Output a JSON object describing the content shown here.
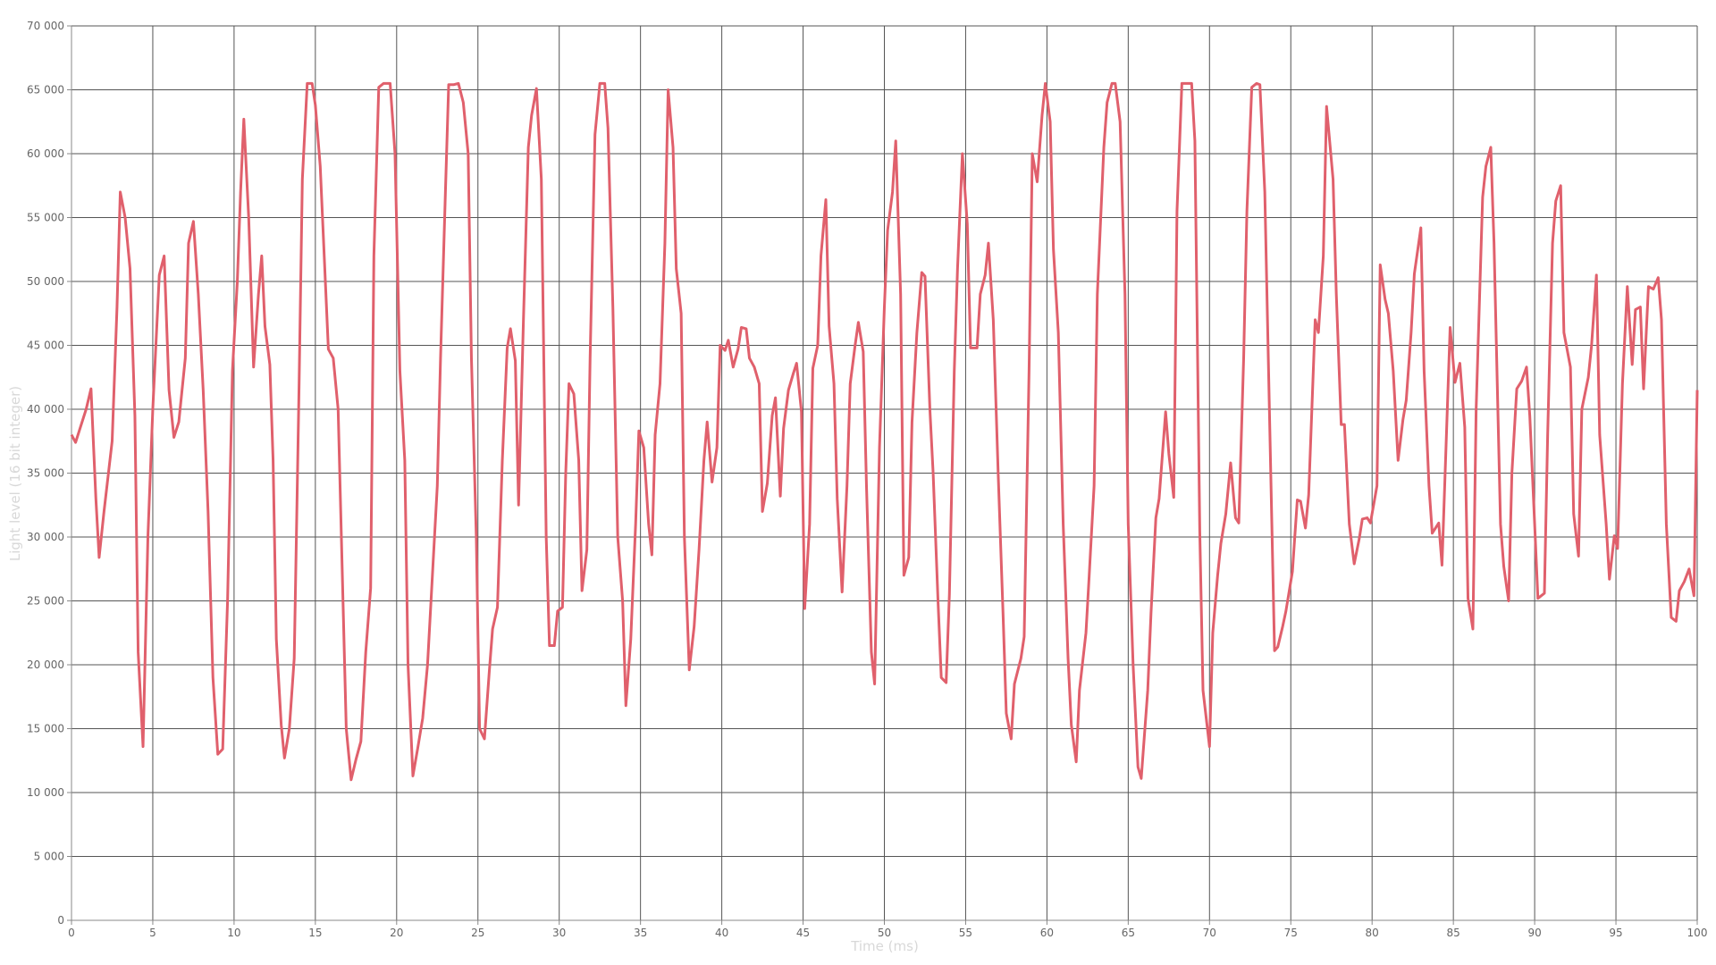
{
  "chart_data": {
    "type": "line",
    "x_label": "Time (ms)",
    "y_label": "Light level (16 bit integer)",
    "color": "#e0606c",
    "grid": true,
    "xlim": [
      0,
      100
    ],
    "xticks": [
      0,
      5,
      10,
      15,
      20,
      25,
      30,
      35,
      40,
      45,
      50,
      55,
      60,
      65,
      70,
      75,
      80,
      85,
      90,
      95,
      100
    ],
    "ylim": [
      0,
      70000
    ],
    "yticks": [
      0,
      {
        "value": 5000,
        "label": "5 000"
      },
      {
        "value": 10000,
        "label": "10 000"
      },
      {
        "value": 15000,
        "label": "15 000"
      },
      {
        "value": 20000,
        "label": "20 000"
      },
      {
        "value": 25000,
        "label": "25 000"
      },
      {
        "value": 30000,
        "label": "30 000"
      },
      {
        "value": 35000,
        "label": "35 000"
      },
      {
        "value": 40000,
        "label": "40 000"
      },
      {
        "value": 45000,
        "label": "45 000"
      },
      {
        "value": 50000,
        "label": "50 000"
      },
      {
        "value": 55000,
        "label": "55 000"
      },
      {
        "value": 60000,
        "label": "60 000"
      },
      {
        "value": 65000,
        "label": "65 000"
      },
      {
        "value": 70000,
        "label": "70 000"
      }
    ],
    "x": [
      0,
      0.25,
      0.9,
      1.2,
      1.5,
      1.7,
      2,
      2.5,
      2.8,
      3,
      3.3,
      3.6,
      3.9,
      4.1,
      4.4,
      4.7,
      5,
      5.4,
      5.7,
      6,
      6.3,
      6.6,
      7,
      7.2,
      7.5,
      7.8,
      8.1,
      8.4,
      8.7,
      9,
      9.3,
      9.6,
      9.9,
      10.2,
      10.4,
      10.6,
      10.9,
      11.2,
      11.5,
      11.7,
      11.9,
      12.2,
      12.4,
      12.6,
      12.9,
      13.1,
      13.4,
      13.7,
      14,
      14.2,
      14.5,
      14.8,
      15,
      15.3,
      15.8,
      16.1,
      16.4,
      16.7,
      16.9,
      17.2,
      17.5,
      17.8,
      18.1,
      18.4,
      18.6,
      18.9,
      19.2,
      19.6,
      19.9,
      20.2,
      20.5,
      20.7,
      21,
      21.3,
      21.6,
      21.9,
      22.2,
      22.5,
      22.7,
      23,
      23.2,
      23.5,
      23.8,
      24.1,
      24.4,
      24.6,
      24.9,
      25.1,
      25.4,
      25.7,
      25.9,
      26.2,
      26.5,
      26.8,
      27,
      27.3,
      27.5,
      27.8,
      28.1,
      28.3,
      28.6,
      28.9,
      29.2,
      29.4,
      29.7,
      29.9,
      30.2,
      30.4,
      30.6,
      30.9,
      31.2,
      31.4,
      31.7,
      31.9,
      32.2,
      32.5,
      32.8,
      33,
      33.3,
      33.6,
      33.9,
      34.1,
      34.4,
      34.7,
      34.9,
      35.2,
      35.5,
      35.7,
      35.9,
      36.2,
      36.5,
      36.7,
      37,
      37.2,
      37.5,
      37.7,
      38,
      38.3,
      38.6,
      38.9,
      39.1,
      39.4,
      39.7,
      39.9,
      40.2,
      40.4,
      40.7,
      41,
      41.2,
      41.5,
      41.7,
      42,
      42.3,
      42.5,
      42.8,
      43.1,
      43.3,
      43.6,
      43.8,
      44.1,
      44.4,
      44.6,
      44.9,
      45.1,
      45.4,
      45.6,
      45.9,
      46.1,
      46.4,
      46.6,
      46.9,
      47.1,
      47.4,
      47.7,
      47.9,
      48.2,
      48.4,
      48.7,
      48.9,
      49.2,
      49.4,
      49.7,
      50,
      50.2,
      50.5,
      50.7,
      51,
      51.2,
      51.5,
      51.7,
      52,
      52.3,
      52.5,
      52.8,
      53,
      53.3,
      53.5,
      53.8,
      54,
      54.3,
      54.5,
      54.8,
      55.1,
      55.3,
      55.7,
      55.9,
      56.2,
      56.4,
      56.7,
      57,
      57.3,
      57.5,
      57.8,
      58,
      58.4,
      58.6,
      58.9,
      59.1,
      59.4,
      59.7,
      59.9,
      60.2,
      60.4,
      60.7,
      61,
      61.3,
      61.5,
      61.8,
      62,
      62.4,
      62.6,
      62.9,
      63.1,
      63.5,
      63.7,
      64,
      64.2,
      64.5,
      64.8,
      65,
      65.3,
      65.6,
      65.8,
      66.2,
      66.4,
      66.7,
      66.9,
      67.3,
      67.5,
      67.8,
      68,
      68.3,
      68.6,
      68.9,
      69.1,
      69.4,
      69.6,
      70,
      70.2,
      70.5,
      70.7,
      71,
      71.3,
      71.6,
      71.8,
      72.1,
      72.3,
      72.6,
      72.9,
      73.1,
      73.4,
      73.6,
      74,
      74.2,
      74.5,
      74.7,
      75.1,
      75.4,
      75.6,
      75.9,
      76.1,
      76.5,
      76.7,
      77,
      77.2,
      77.6,
      77.8,
      78.1,
      78.3,
      78.6,
      78.9,
      79.2,
      79.4,
      79.7,
      79.9,
      80.3,
      80.5,
      80.8,
      81,
      81.3,
      81.6,
      81.9,
      82.1,
      82.4,
      82.6,
      83,
      83.2,
      83.5,
      83.7,
      84.1,
      84.3,
      84.6,
      84.8,
      85.1,
      85.4,
      85.7,
      85.9,
      86.2,
      86.4,
      86.8,
      87,
      87.3,
      87.5,
      87.9,
      88.1,
      88.4,
      88.6,
      88.9,
      89.2,
      89.5,
      89.7,
      90,
      90.2,
      90.6,
      90.8,
      91.1,
      91.3,
      91.6,
      91.8,
      92.2,
      92.4,
      92.7,
      92.9,
      93.3,
      93.5,
      93.8,
      94,
      94.4,
      94.6,
      94.9,
      95.1,
      95.4,
      95.7,
      96,
      96.2,
      96.5,
      96.7,
      97,
      97.3,
      97.6,
      97.8,
      98.1,
      98.4,
      98.7,
      98.9,
      99.2,
      99.5,
      99.8,
      100
    ],
    "values": [
      38000,
      37400,
      40000,
      41600,
      33000,
      28400,
      32000,
      37500,
      48000,
      57000,
      55000,
      51000,
      39500,
      21000,
      13600,
      30000,
      40000,
      50500,
      52000,
      41500,
      37800,
      39000,
      44000,
      53000,
      54700,
      49000,
      41500,
      32000,
      19000,
      13000,
      13400,
      25000,
      43000,
      50000,
      57000,
      62700,
      55000,
      43300,
      49000,
      52000,
      46500,
      43500,
      36000,
      22000,
      15300,
      12700,
      15000,
      20500,
      42000,
      58000,
      65500,
      65500,
      63800,
      59000,
      44700,
      44000,
      40000,
      25000,
      15000,
      11000,
      12600,
      14000,
      21000,
      26000,
      52000,
      65200,
      65500,
      65500,
      60000,
      43000,
      36000,
      20000,
      11300,
      13500,
      15800,
      20000,
      27000,
      34000,
      44000,
      57000,
      65400,
      65400,
      65500,
      64000,
      60000,
      44000,
      30000,
      15000,
      14200,
      19500,
      22800,
      24500,
      36000,
      44800,
      46300,
      43800,
      32500,
      47000,
      60500,
      63000,
      65100,
      58000,
      30000,
      21500,
      21500,
      24200,
      24500,
      35000,
      42000,
      41200,
      36000,
      25800,
      29000,
      44000,
      61500,
      65500,
      65500,
      62000,
      48000,
      30000,
      25000,
      16800,
      22000,
      31000,
      38300,
      37000,
      31000,
      28600,
      38000,
      42000,
      53000,
      65000,
      60500,
      51000,
      47500,
      30000,
      19600,
      23000,
      29000,
      36000,
      39000,
      34300,
      37000,
      45000,
      44600,
      45400,
      43300,
      44700,
      46400,
      46300,
      44000,
      43300,
      42000,
      32000,
      34200,
      39500,
      40900,
      33200,
      38500,
      41500,
      42800,
      43600,
      39800,
      24400,
      31000,
      43200,
      45000,
      52000,
      56400,
      46500,
      42000,
      33000,
      25700,
      34000,
      42000,
      45000,
      46800,
      44500,
      34000,
      21000,
      18500,
      37000,
      48000,
      54000,
      57000,
      61000,
      49000,
      27000,
      28400,
      39000,
      46000,
      50700,
      50400,
      40000,
      35000,
      25000,
      19000,
      18600,
      25500,
      43000,
      51000,
      60000,
      54500,
      44800,
      44800,
      49000,
      50500,
      53000,
      47000,
      35000,
      24000,
      16200,
      14200,
      18500,
      20500,
      22200,
      43000,
      60000,
      57800,
      63000,
      65500,
      62500,
      52500,
      46000,
      31000,
      20500,
      15300,
      12400,
      18000,
      22500,
      27000,
      34000,
      49000,
      60500,
      64000,
      65500,
      65500,
      62500,
      49000,
      31000,
      20000,
      12000,
      11100,
      18000,
      24000,
      31500,
      33000,
      39800,
      36500,
      33100,
      55500,
      65500,
      65500,
      65500,
      61000,
      30500,
      18000,
      13600,
      22500,
      27000,
      29500,
      31800,
      35800,
      31500,
      31100,
      44000,
      55500,
      65200,
      65500,
      65400,
      57000,
      45000,
      21100,
      21400,
      23000,
      24200,
      27300,
      32900,
      32800,
      30700,
      33300,
      47000,
      46000,
      52000,
      63700,
      58000,
      49000,
      38800,
      38800,
      31000,
      27900,
      29800,
      31400,
      31500,
      31100,
      34000,
      51300,
      48600,
      47500,
      43000,
      36000,
      39200,
      40700,
      46000,
      50600,
      54200,
      43000,
      34000,
      30300,
      31100,
      27800,
      39000,
      46400,
      42100,
      43600,
      38600,
      25200,
      22800,
      40000,
      56600,
      59000,
      60500,
      53000,
      31000,
      27700,
      25000,
      35000,
      41600,
      42200,
      43300,
      39500,
      31000,
      25200,
      25600,
      38000,
      53000,
      56300,
      57500,
      46000,
      43300,
      31800,
      28500,
      40000,
      42500,
      45000,
      50500,
      38000,
      31000,
      26700,
      30100,
      29100,
      42000,
      49600,
      43500,
      47800,
      48000,
      41600,
      49600,
      49400,
      50300,
      47000,
      31000,
      23700,
      23400,
      25800,
      26500,
      27500,
      25400,
      41500
    ]
  }
}
